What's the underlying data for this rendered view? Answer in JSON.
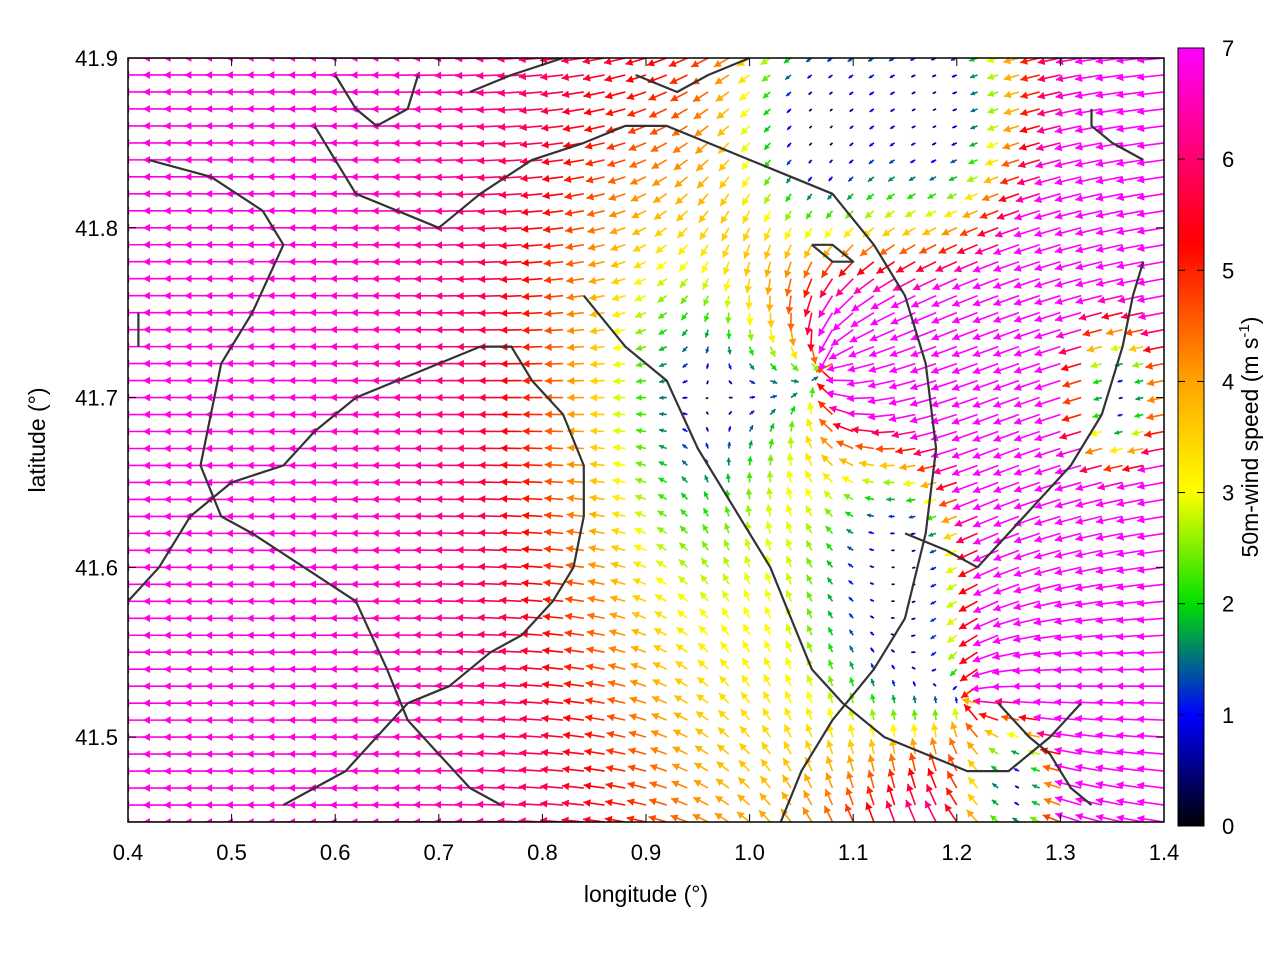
{
  "chart_data": {
    "type": "vector-field",
    "xlabel": "longitude (°)",
    "ylabel": "latitude (°)",
    "xlim": [
      0.4,
      1.4
    ],
    "ylim": [
      41.45,
      41.9
    ],
    "xticks": [
      "0.4",
      "0.5",
      "0.6",
      "0.7",
      "0.8",
      "0.9",
      "1.0",
      "1.1",
      "1.2",
      "1.3",
      "1.4"
    ],
    "yticks": [
      "41.5",
      "41.6",
      "41.7",
      "41.8",
      "41.9"
    ],
    "grid": false,
    "colorbar": {
      "label_prefix": "50m-wind speed (m s",
      "label_exp": "-1",
      "label_suffix": ")",
      "range": [
        0,
        7
      ],
      "ticks": [
        "0",
        "1",
        "2",
        "3",
        "4",
        "5",
        "6",
        "7"
      ],
      "colors": [
        "#000000",
        "#0000ff",
        "#00e000",
        "#ffff00",
        "#ffa500",
        "#ff0000",
        "#ff00ff"
      ]
    },
    "wind_field": {
      "lon_step": 0.02,
      "lat_step": 0.01,
      "features": [
        {
          "kind": "uniform",
          "u": -6.8,
          "v": 0.0
        },
        {
          "kind": "sink",
          "lon": 1.08,
          "lat": 41.72,
          "strength": 5.5,
          "radius": 0.16
        },
        {
          "kind": "sink",
          "lon": 1.22,
          "lat": 41.52,
          "strength": 6.0,
          "radius": 0.18
        },
        {
          "kind": "calm",
          "lon": 1.07,
          "lat": 41.86,
          "radius": 0.06
        },
        {
          "kind": "calm",
          "lon": 1.18,
          "lat": 41.87,
          "radius": 0.08
        },
        {
          "kind": "calm",
          "lon": 1.15,
          "lat": 41.6,
          "radius": 0.06
        },
        {
          "kind": "calm",
          "lon": 1.26,
          "lat": 41.47,
          "radius": 0.05
        },
        {
          "kind": "calm",
          "lon": 1.36,
          "lat": 41.7,
          "radius": 0.04
        }
      ]
    },
    "boundaries": [
      [
        [
          0.42,
          41.84
        ],
        [
          0.48,
          41.83
        ],
        [
          0.53,
          41.81
        ],
        [
          0.55,
          41.79
        ],
        [
          0.52,
          41.75
        ],
        [
          0.49,
          41.72
        ],
        [
          0.47,
          41.66
        ],
        [
          0.49,
          41.63
        ],
        [
          0.52,
          41.62
        ],
        [
          0.57,
          41.6
        ],
        [
          0.62,
          41.58
        ],
        [
          0.65,
          41.54
        ],
        [
          0.67,
          41.51
        ],
        [
          0.7,
          41.49
        ],
        [
          0.73,
          41.47
        ],
        [
          0.76,
          41.46
        ]
      ],
      [
        [
          0.41,
          41.73
        ],
        [
          0.41,
          41.75
        ]
      ],
      [
        [
          0.58,
          41.86
        ],
        [
          0.6,
          41.84
        ],
        [
          0.62,
          41.82
        ],
        [
          0.66,
          41.81
        ],
        [
          0.7,
          41.8
        ],
        [
          0.74,
          41.82
        ],
        [
          0.79,
          41.84
        ],
        [
          0.84,
          41.85
        ],
        [
          0.88,
          41.86
        ],
        [
          0.92,
          41.86
        ],
        [
          0.96,
          41.85
        ],
        [
          1.0,
          41.84
        ],
        [
          1.04,
          41.83
        ],
        [
          1.08,
          41.82
        ],
        [
          1.12,
          41.79
        ],
        [
          1.15,
          41.76
        ],
        [
          1.17,
          41.72
        ],
        [
          1.18,
          41.67
        ],
        [
          1.17,
          41.62
        ],
        [
          1.15,
          41.57
        ],
        [
          1.12,
          41.54
        ],
        [
          1.08,
          41.51
        ],
        [
          1.05,
          41.48
        ],
        [
          1.03,
          41.45
        ]
      ],
      [
        [
          0.6,
          41.89
        ],
        [
          0.62,
          41.87
        ],
        [
          0.64,
          41.86
        ],
        [
          0.67,
          41.87
        ],
        [
          0.68,
          41.89
        ]
      ],
      [
        [
          0.73,
          41.88
        ],
        [
          0.77,
          41.89
        ],
        [
          0.82,
          41.9
        ]
      ],
      [
        [
          0.89,
          41.89
        ],
        [
          0.93,
          41.88
        ],
        [
          0.96,
          41.89
        ],
        [
          1.0,
          41.9
        ]
      ],
      [
        [
          0.84,
          41.76
        ],
        [
          0.88,
          41.73
        ],
        [
          0.92,
          41.71
        ],
        [
          0.95,
          41.67
        ],
        [
          0.99,
          41.63
        ],
        [
          1.02,
          41.6
        ],
        [
          1.04,
          41.57
        ],
        [
          1.06,
          41.54
        ],
        [
          1.09,
          41.52
        ],
        [
          1.13,
          41.5
        ],
        [
          1.17,
          41.49
        ],
        [
          1.21,
          41.48
        ],
        [
          1.25,
          41.48
        ],
        [
          1.29,
          41.5
        ],
        [
          1.32,
          41.52
        ]
      ],
      [
        [
          1.15,
          41.62
        ],
        [
          1.19,
          41.61
        ],
        [
          1.22,
          41.6
        ],
        [
          1.25,
          41.62
        ],
        [
          1.28,
          41.64
        ],
        [
          1.31,
          41.66
        ],
        [
          1.34,
          41.69
        ],
        [
          1.36,
          41.73
        ],
        [
          1.37,
          41.76
        ],
        [
          1.38,
          41.78
        ]
      ],
      [
        [
          1.24,
          41.52
        ],
        [
          1.27,
          41.5
        ],
        [
          1.29,
          41.49
        ],
        [
          1.31,
          41.47
        ],
        [
          1.33,
          41.46
        ]
      ],
      [
        [
          1.06,
          41.79
        ],
        [
          1.08,
          41.78
        ],
        [
          1.1,
          41.78
        ],
        [
          1.08,
          41.79
        ],
        [
          1.06,
          41.79
        ]
      ],
      [
        [
          1.33,
          41.87
        ],
        [
          1.33,
          41.86
        ],
        [
          1.35,
          41.85
        ],
        [
          1.38,
          41.84
        ]
      ],
      [
        [
          0.4,
          41.58
        ],
        [
          0.43,
          41.6
        ],
        [
          0.46,
          41.63
        ],
        [
          0.5,
          41.65
        ],
        [
          0.55,
          41.66
        ],
        [
          0.58,
          41.68
        ],
        [
          0.62,
          41.7
        ],
        [
          0.66,
          41.71
        ],
        [
          0.7,
          41.72
        ],
        [
          0.74,
          41.73
        ],
        [
          0.77,
          41.73
        ],
        [
          0.79,
          41.71
        ],
        [
          0.82,
          41.69
        ],
        [
          0.84,
          41.66
        ],
        [
          0.84,
          41.63
        ],
        [
          0.83,
          41.6
        ],
        [
          0.81,
          41.58
        ],
        [
          0.78,
          41.56
        ],
        [
          0.75,
          41.55
        ],
        [
          0.71,
          41.53
        ],
        [
          0.67,
          41.52
        ],
        [
          0.64,
          41.5
        ],
        [
          0.61,
          41.48
        ],
        [
          0.58,
          41.47
        ],
        [
          0.55,
          41.46
        ]
      ]
    ]
  }
}
